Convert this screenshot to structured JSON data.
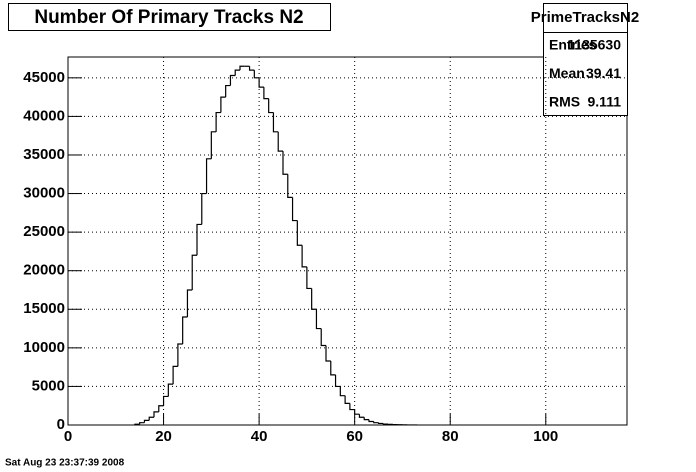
{
  "chart_data": {
    "type": "histogram",
    "title": "Number Of Primary Tracks N2",
    "bins": [
      14,
      15,
      16,
      17,
      18,
      19,
      20,
      21,
      22,
      23,
      24,
      25,
      26,
      27,
      28,
      29,
      30,
      31,
      32,
      33,
      34,
      35,
      36,
      37,
      38,
      39,
      40,
      41,
      42,
      43,
      44,
      45,
      46,
      47,
      48,
      49,
      50,
      51,
      52,
      53,
      54,
      55,
      56,
      57,
      58,
      59,
      60,
      61,
      62,
      63,
      64,
      65,
      66,
      67,
      68,
      69,
      70,
      71,
      72,
      73
    ],
    "values": [
      100,
      300,
      600,
      1000,
      1700,
      2500,
      3700,
      5300,
      7600,
      10500,
      14000,
      17500,
      22000,
      26000,
      30000,
      34500,
      38000,
      40500,
      42500,
      44000,
      45300,
      46000,
      46500,
      46500,
      46000,
      45000,
      43800,
      42300,
      40500,
      38000,
      35500,
      32500,
      29500,
      26500,
      23300,
      20500,
      17700,
      15000,
      12500,
      10300,
      8300,
      6500,
      5000,
      3800,
      2800,
      2000,
      1400,
      1000,
      700,
      450,
      300,
      200,
      120,
      80,
      50,
      30,
      20,
      10,
      5
    ],
    "color": "#000000",
    "xlim": [
      0,
      117
    ],
    "ylim": [
      0,
      47700
    ],
    "xticks": [
      0,
      20,
      40,
      60,
      80,
      100
    ],
    "yticks": [
      0,
      5000,
      10000,
      15000,
      20000,
      25000,
      30000,
      35000,
      40000,
      45000
    ],
    "grid": true,
    "stats": {
      "name": "PrimeTracksN2",
      "rows": [
        {
          "label": "Entries",
          "value": 1135630
        },
        {
          "label": "Mean",
          "value": 39.41
        },
        {
          "label": "RMS",
          "value": 9.111
        }
      ]
    },
    "footer": "Sat Aug 23 23:37:39 2008"
  }
}
